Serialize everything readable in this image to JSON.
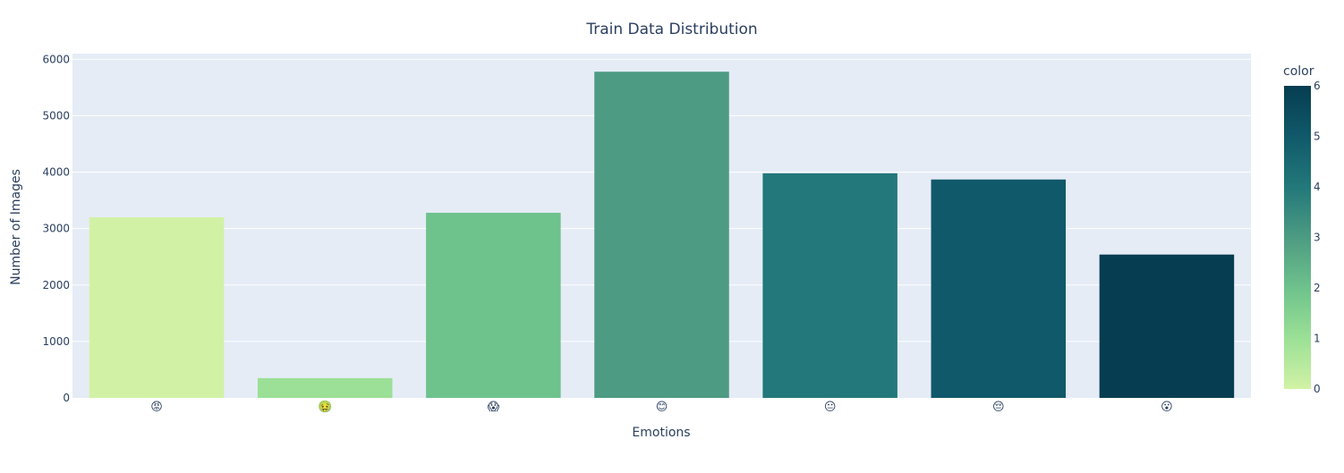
{
  "chart_data": {
    "type": "bar",
    "title": "Train Data Distribution",
    "xlabel": "Emotions",
    "ylabel": "Number of Images",
    "categories": [
      "😡",
      "🤢",
      "😱",
      "😊",
      "😐",
      "😔",
      "😮"
    ],
    "values": [
      3200,
      350,
      3280,
      5780,
      3980,
      3870,
      2540
    ],
    "color_values": [
      0,
      1,
      2,
      3,
      4,
      5,
      6
    ],
    "ylim": [
      0,
      6100
    ],
    "yticks": [
      0,
      1000,
      2000,
      3000,
      4000,
      5000,
      6000
    ],
    "grid": true,
    "colorbar": {
      "title": "color",
      "range": [
        0,
        6
      ],
      "ticks": [
        0,
        1,
        2,
        3,
        4,
        5,
        6
      ],
      "colors": [
        "#d1f2a5",
        "#9be096",
        "#6ec28c",
        "#4d9b82",
        "#22787a",
        "#10596a",
        "#063d51"
      ]
    },
    "background_color": "#e5ecf6"
  }
}
